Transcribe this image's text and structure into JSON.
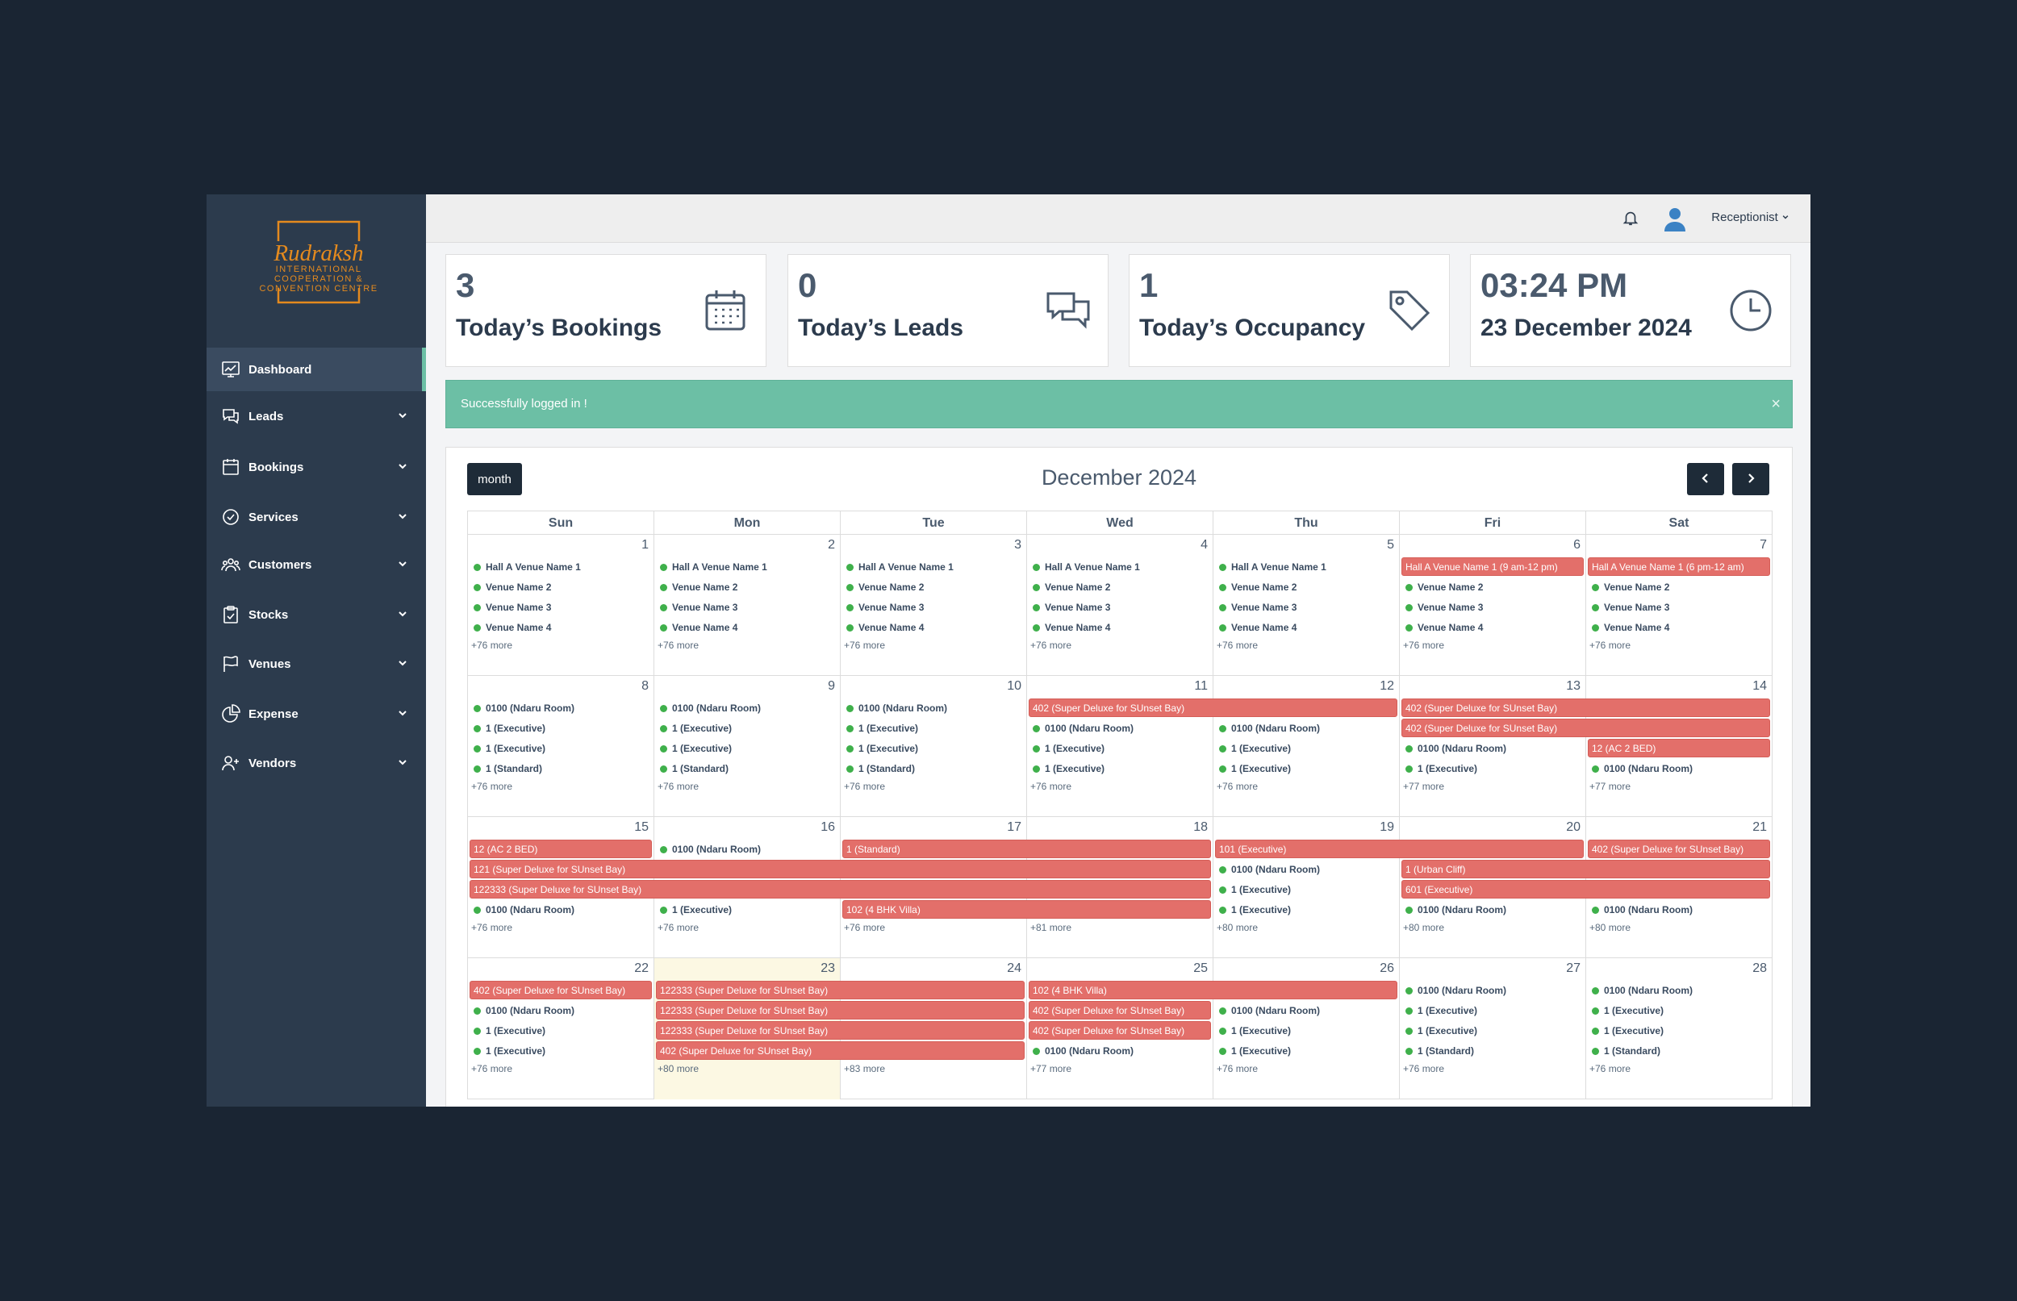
{
  "brand": {
    "name": "Rudraksh",
    "line1": "INTERNATIONAL",
    "line2": "COOPERATION &",
    "line3": "CONVENTION CENTRE",
    "color": "#e48a1e"
  },
  "sidebar": {
    "items": [
      {
        "label": "Dashboard",
        "icon": "chart-board-icon",
        "active": true,
        "chevron": false
      },
      {
        "label": "Leads",
        "icon": "chat-bubbles-icon",
        "chevron": true
      },
      {
        "label": "Bookings",
        "icon": "calendar-icon",
        "chevron": true
      },
      {
        "label": "Services",
        "icon": "check-circle-icon",
        "chevron": true
      },
      {
        "label": "Customers",
        "icon": "users-icon",
        "chevron": true
      },
      {
        "label": "Stocks",
        "icon": "clipboard-icon",
        "chevron": true
      },
      {
        "label": "Venues",
        "icon": "flag-icon",
        "chevron": true
      },
      {
        "label": "Expense",
        "icon": "pie-chart-icon",
        "chevron": true
      },
      {
        "label": "Vendors",
        "icon": "user-plus-icon",
        "chevron": true
      }
    ]
  },
  "topbar": {
    "user": "Receptionist",
    "bell_icon": "bell-icon",
    "avatar_icon": "user-avatar-icon"
  },
  "cards": [
    {
      "value": "3",
      "label": "Today’s Bookings",
      "icon": "calendar-icon"
    },
    {
      "value": "0",
      "label": "Today’s Leads",
      "icon": "chat-bubbles-icon"
    },
    {
      "value": "1",
      "label": "Today’s Occupancy",
      "icon": "tag-icon"
    },
    {
      "value": "03:24 PM",
      "label": "23 December 2024",
      "icon": "clock-icon"
    }
  ],
  "alert": {
    "text": "Successfully logged in !",
    "close": "×"
  },
  "calendar": {
    "view_button": "month",
    "title": "December 2024",
    "days": [
      "Sun",
      "Mon",
      "Tue",
      "Wed",
      "Thu",
      "Fri",
      "Sat"
    ],
    "colors": {
      "booking": "#e36f6a",
      "dot": "#3fb04b",
      "today": "#fcf8e3"
    },
    "weeks": [
      {
        "dates": [
          "1",
          "2",
          "3",
          "4",
          "5",
          "6",
          "7"
        ],
        "today": -1,
        "events": [
          {
            "t": "dot",
            "c": 0,
            "r": 0,
            "text": "Hall A Venue Name 1"
          },
          {
            "t": "dot",
            "c": 0,
            "r": 1,
            "text": "Venue Name 2"
          },
          {
            "t": "dot",
            "c": 0,
            "r": 2,
            "text": "Venue Name 3"
          },
          {
            "t": "dot",
            "c": 0,
            "r": 3,
            "text": "Venue Name 4"
          },
          {
            "t": "dot",
            "c": 1,
            "r": 0,
            "text": "Hall A Venue Name 1"
          },
          {
            "t": "dot",
            "c": 1,
            "r": 1,
            "text": "Venue Name 2"
          },
          {
            "t": "dot",
            "c": 1,
            "r": 2,
            "text": "Venue Name 3"
          },
          {
            "t": "dot",
            "c": 1,
            "r": 3,
            "text": "Venue Name 4"
          },
          {
            "t": "dot",
            "c": 2,
            "r": 0,
            "text": "Hall A Venue Name 1"
          },
          {
            "t": "dot",
            "c": 2,
            "r": 1,
            "text": "Venue Name 2"
          },
          {
            "t": "dot",
            "c": 2,
            "r": 2,
            "text": "Venue Name 3"
          },
          {
            "t": "dot",
            "c": 2,
            "r": 3,
            "text": "Venue Name 4"
          },
          {
            "t": "dot",
            "c": 3,
            "r": 0,
            "text": "Hall A Venue Name 1"
          },
          {
            "t": "dot",
            "c": 3,
            "r": 1,
            "text": "Venue Name 2"
          },
          {
            "t": "dot",
            "c": 3,
            "r": 2,
            "text": "Venue Name 3"
          },
          {
            "t": "dot",
            "c": 3,
            "r": 3,
            "text": "Venue Name 4"
          },
          {
            "t": "dot",
            "c": 4,
            "r": 0,
            "text": "Hall A Venue Name 1"
          },
          {
            "t": "dot",
            "c": 4,
            "r": 1,
            "text": "Venue Name 2"
          },
          {
            "t": "dot",
            "c": 4,
            "r": 2,
            "text": "Venue Name 3"
          },
          {
            "t": "dot",
            "c": 4,
            "r": 3,
            "text": "Venue Name 4"
          },
          {
            "t": "bar",
            "c": 5,
            "span": 1,
            "r": 0,
            "text": "Hall A Venue Name 1 (9 am-12 pm)"
          },
          {
            "t": "dot",
            "c": 5,
            "r": 1,
            "text": "Venue Name 2"
          },
          {
            "t": "dot",
            "c": 5,
            "r": 2,
            "text": "Venue Name 3"
          },
          {
            "t": "dot",
            "c": 5,
            "r": 3,
            "text": "Venue Name 4"
          },
          {
            "t": "bar",
            "c": 6,
            "span": 1,
            "r": 0,
            "text": "Hall A Venue Name 1 (6 pm-12 am)"
          },
          {
            "t": "dot",
            "c": 6,
            "r": 1,
            "text": "Venue Name 2"
          },
          {
            "t": "dot",
            "c": 6,
            "r": 2,
            "text": "Venue Name 3"
          },
          {
            "t": "dot",
            "c": 6,
            "r": 3,
            "text": "Venue Name 4"
          }
        ],
        "more": [
          "+76 more",
          "+76 more",
          "+76 more",
          "+76 more",
          "+76 more",
          "+76 more",
          "+76 more"
        ]
      },
      {
        "dates": [
          "8",
          "9",
          "10",
          "11",
          "12",
          "13",
          "14"
        ],
        "today": -1,
        "events": [
          {
            "t": "dot",
            "c": 0,
            "r": 0,
            "text": "0100 (Ndaru Room)"
          },
          {
            "t": "dot",
            "c": 0,
            "r": 1,
            "text": "1 (Executive)"
          },
          {
            "t": "dot",
            "c": 0,
            "r": 2,
            "text": "1 (Executive)"
          },
          {
            "t": "dot",
            "c": 0,
            "r": 3,
            "text": "1 (Standard)"
          },
          {
            "t": "dot",
            "c": 1,
            "r": 0,
            "text": "0100 (Ndaru Room)"
          },
          {
            "t": "dot",
            "c": 1,
            "r": 1,
            "text": "1 (Executive)"
          },
          {
            "t": "dot",
            "c": 1,
            "r": 2,
            "text": "1 (Executive)"
          },
          {
            "t": "dot",
            "c": 1,
            "r": 3,
            "text": "1 (Standard)"
          },
          {
            "t": "dot",
            "c": 2,
            "r": 0,
            "text": "0100 (Ndaru Room)"
          },
          {
            "t": "dot",
            "c": 2,
            "r": 1,
            "text": "1 (Executive)"
          },
          {
            "t": "dot",
            "c": 2,
            "r": 2,
            "text": "1 (Executive)"
          },
          {
            "t": "dot",
            "c": 2,
            "r": 3,
            "text": "1 (Standard)"
          },
          {
            "t": "bar",
            "c": 3,
            "span": 2,
            "r": 0,
            "text": "402 (Super Deluxe for SUnset Bay)"
          },
          {
            "t": "dot",
            "c": 3,
            "r": 1,
            "text": "0100 (Ndaru Room)"
          },
          {
            "t": "dot",
            "c": 3,
            "r": 2,
            "text": "1 (Executive)"
          },
          {
            "t": "dot",
            "c": 3,
            "r": 3,
            "text": "1 (Executive)"
          },
          {
            "t": "dot",
            "c": 4,
            "r": 1,
            "text": "0100 (Ndaru Room)"
          },
          {
            "t": "dot",
            "c": 4,
            "r": 2,
            "text": "1 (Executive)"
          },
          {
            "t": "dot",
            "c": 4,
            "r": 3,
            "text": "1 (Executive)"
          },
          {
            "t": "bar",
            "c": 5,
            "span": 2,
            "r": 0,
            "text": "402 (Super Deluxe for SUnset Bay)"
          },
          {
            "t": "bar",
            "c": 5,
            "span": 2,
            "r": 1,
            "text": "402 (Super Deluxe for SUnset Bay)"
          },
          {
            "t": "dot",
            "c": 5,
            "r": 2,
            "text": "0100 (Ndaru Room)"
          },
          {
            "t": "dot",
            "c": 5,
            "r": 3,
            "text": "1 (Executive)"
          },
          {
            "t": "bar",
            "c": 6,
            "span": 1,
            "r": 2,
            "text": "12 (AC 2 BED)"
          },
          {
            "t": "dot",
            "c": 6,
            "r": 3,
            "text": "0100 (Ndaru Room)"
          }
        ],
        "more": [
          "+76 more",
          "+76 more",
          "+76 more",
          "+76 more",
          "+76 more",
          "+77 more",
          "+77 more"
        ]
      },
      {
        "dates": [
          "15",
          "16",
          "17",
          "18",
          "19",
          "20",
          "21"
        ],
        "today": -1,
        "events": [
          {
            "t": "bar",
            "c": 0,
            "span": 1,
            "r": 0,
            "text": "12 (AC 2 BED)"
          },
          {
            "t": "bar",
            "c": 0,
            "span": 4,
            "r": 1,
            "text": "121 (Super Deluxe for SUnset Bay)"
          },
          {
            "t": "bar",
            "c": 0,
            "span": 4,
            "r": 2,
            "text": "122333 (Super Deluxe for SUnset Bay)"
          },
          {
            "t": "dot",
            "c": 0,
            "r": 3,
            "text": "0100 (Ndaru Room)"
          },
          {
            "t": "dot",
            "c": 1,
            "r": 0,
            "text": "0100 (Ndaru Room)"
          },
          {
            "t": "dot",
            "c": 1,
            "r": 3,
            "text": "1 (Executive)"
          },
          {
            "t": "bar",
            "c": 2,
            "span": 2,
            "r": 0,
            "text": "1 (Standard)"
          },
          {
            "t": "bar",
            "c": 2,
            "span": 2,
            "r": 3,
            "text": "102 (4 BHK Villa)"
          },
          {
            "t": "bar",
            "c": 4,
            "span": 2,
            "r": 0,
            "text": "101 (Executive)"
          },
          {
            "t": "dot",
            "c": 4,
            "r": 1,
            "text": "0100 (Ndaru Room)"
          },
          {
            "t": "dot",
            "c": 4,
            "r": 2,
            "text": "1 (Executive)"
          },
          {
            "t": "dot",
            "c": 4,
            "r": 3,
            "text": "1 (Executive)"
          },
          {
            "t": "bar",
            "c": 5,
            "span": 2,
            "r": 1,
            "text": "1 (Urban Cliff)"
          },
          {
            "t": "bar",
            "c": 5,
            "span": 2,
            "r": 2,
            "text": "601 (Executive)"
          },
          {
            "t": "dot",
            "c": 5,
            "r": 3,
            "text": "0100 (Ndaru Room)"
          },
          {
            "t": "bar",
            "c": 6,
            "span": 1,
            "r": 0,
            "text": "402 (Super Deluxe for SUnset Bay)"
          },
          {
            "t": "dot",
            "c": 6,
            "r": 3,
            "text": "0100 (Ndaru Room)"
          }
        ],
        "more": [
          "+76 more",
          "+76 more",
          "+76 more",
          "+81 more",
          "+80 more",
          "+80 more",
          "+80 more"
        ]
      },
      {
        "dates": [
          "22",
          "23",
          "24",
          "25",
          "26",
          "27",
          "28"
        ],
        "today": 1,
        "events": [
          {
            "t": "bar",
            "c": 0,
            "span": 1,
            "r": 0,
            "text": "402 (Super Deluxe for SUnset Bay)"
          },
          {
            "t": "dot",
            "c": 0,
            "r": 1,
            "text": "0100 (Ndaru Room)"
          },
          {
            "t": "dot",
            "c": 0,
            "r": 2,
            "text": "1 (Executive)"
          },
          {
            "t": "dot",
            "c": 0,
            "r": 3,
            "text": "1 (Executive)"
          },
          {
            "t": "bar",
            "c": 1,
            "span": 2,
            "r": 0,
            "text": "122333 (Super Deluxe for SUnset Bay)"
          },
          {
            "t": "bar",
            "c": 1,
            "span": 2,
            "r": 1,
            "text": "122333 (Super Deluxe for SUnset Bay)"
          },
          {
            "t": "bar",
            "c": 1,
            "span": 2,
            "r": 2,
            "text": "122333 (Super Deluxe for SUnset Bay)"
          },
          {
            "t": "bar",
            "c": 1,
            "span": 2,
            "r": 3,
            "text": "402 (Super Deluxe for SUnset Bay)"
          },
          {
            "t": "bar",
            "c": 3,
            "span": 2,
            "r": 0,
            "text": "102 (4 BHK Villa)"
          },
          {
            "t": "bar",
            "c": 3,
            "span": 1,
            "r": 1,
            "text": "402 (Super Deluxe for SUnset Bay)"
          },
          {
            "t": "bar",
            "c": 3,
            "span": 1,
            "r": 2,
            "text": "402 (Super Deluxe for SUnset Bay)"
          },
          {
            "t": "dot",
            "c": 3,
            "r": 3,
            "text": "0100 (Ndaru Room)"
          },
          {
            "t": "dot",
            "c": 4,
            "r": 1,
            "text": "0100 (Ndaru Room)"
          },
          {
            "t": "dot",
            "c": 4,
            "r": 2,
            "text": "1 (Executive)"
          },
          {
            "t": "dot",
            "c": 4,
            "r": 3,
            "text": "1 (Executive)"
          },
          {
            "t": "dot",
            "c": 5,
            "r": 0,
            "text": "0100 (Ndaru Room)"
          },
          {
            "t": "dot",
            "c": 5,
            "r": 1,
            "text": "1 (Executive)"
          },
          {
            "t": "dot",
            "c": 5,
            "r": 2,
            "text": "1 (Executive)"
          },
          {
            "t": "dot",
            "c": 5,
            "r": 3,
            "text": "1 (Standard)"
          },
          {
            "t": "dot",
            "c": 6,
            "r": 0,
            "text": "0100 (Ndaru Room)"
          },
          {
            "t": "dot",
            "c": 6,
            "r": 1,
            "text": "1 (Executive)"
          },
          {
            "t": "dot",
            "c": 6,
            "r": 2,
            "text": "1 (Executive)"
          },
          {
            "t": "dot",
            "c": 6,
            "r": 3,
            "text": "1 (Standard)"
          }
        ],
        "more": [
          "+76 more",
          "+80 more",
          "+83 more",
          "+77 more",
          "+76 more",
          "+76 more",
          "+76 more"
        ]
      }
    ]
  }
}
